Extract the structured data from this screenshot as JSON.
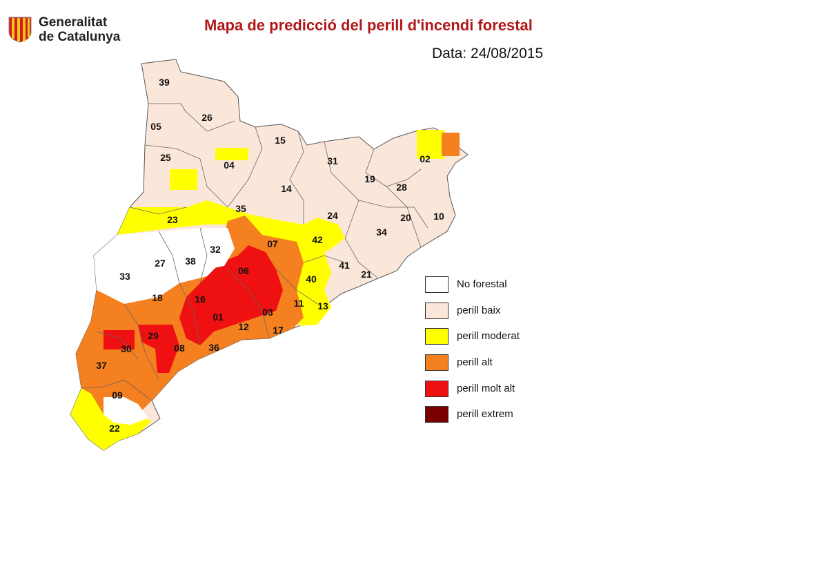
{
  "header": {
    "org_line1": "Generalitat",
    "org_line2": "de Catalunya",
    "title": "Mapa de predicció del perill d'incendi forestal",
    "date": "Data: 24/08/2015"
  },
  "colors": {
    "no_forestal": "#ffffff",
    "baix": "#fbe6da",
    "moderat": "#ffff00",
    "alt": "#f5801f",
    "molt_alt": "#ef1111",
    "extrem": "#7a0000",
    "title": "#b01818",
    "logo_red": "#d61a1a",
    "logo_yellow": "#f4c61a"
  },
  "legend": [
    {
      "label": "No forestal",
      "color": "#ffffff"
    },
    {
      "label": "perill baix",
      "color": "#fbe6da"
    },
    {
      "label": "perill moderat",
      "color": "#ffff00"
    },
    {
      "label": "perill alt",
      "color": "#f5801f"
    },
    {
      "label": "perill molt alt",
      "color": "#ef1111"
    },
    {
      "label": "perill extrem",
      "color": "#7a0000"
    }
  ],
  "zones": [
    {
      "id": "39",
      "level": "baix"
    },
    {
      "id": "26",
      "level": "baix"
    },
    {
      "id": "05",
      "level": "baix"
    },
    {
      "id": "15",
      "level": "baix"
    },
    {
      "id": "25",
      "level": "baix"
    },
    {
      "id": "04",
      "level": "baix"
    },
    {
      "id": "31",
      "level": "baix"
    },
    {
      "id": "02",
      "level": "baix"
    },
    {
      "id": "19",
      "level": "baix"
    },
    {
      "id": "28",
      "level": "baix"
    },
    {
      "id": "14",
      "level": "baix"
    },
    {
      "id": "35",
      "level": "moderat"
    },
    {
      "id": "24",
      "level": "baix"
    },
    {
      "id": "23",
      "level": "moderat"
    },
    {
      "id": "20",
      "level": "baix"
    },
    {
      "id": "10",
      "level": "baix"
    },
    {
      "id": "34",
      "level": "baix"
    },
    {
      "id": "07",
      "level": "alt"
    },
    {
      "id": "42",
      "level": "moderat"
    },
    {
      "id": "32",
      "level": "no_forestal"
    },
    {
      "id": "27",
      "level": "no_forestal"
    },
    {
      "id": "38",
      "level": "no_forestal"
    },
    {
      "id": "33",
      "level": "no_forestal"
    },
    {
      "id": "06",
      "level": "molt_alt"
    },
    {
      "id": "41",
      "level": "baix"
    },
    {
      "id": "21",
      "level": "baix"
    },
    {
      "id": "40",
      "level": "moderat"
    },
    {
      "id": "18",
      "level": "alt"
    },
    {
      "id": "16",
      "level": "molt_alt"
    },
    {
      "id": "11",
      "level": "alt"
    },
    {
      "id": "13",
      "level": "moderat"
    },
    {
      "id": "01",
      "level": "molt_alt"
    },
    {
      "id": "03",
      "level": "alt"
    },
    {
      "id": "12",
      "level": "alt"
    },
    {
      "id": "17",
      "level": "alt"
    },
    {
      "id": "29",
      "level": "alt"
    },
    {
      "id": "30",
      "level": "alt"
    },
    {
      "id": "08",
      "level": "molt_alt"
    },
    {
      "id": "36",
      "level": "alt"
    },
    {
      "id": "37",
      "level": "alt"
    },
    {
      "id": "09",
      "level": "alt"
    },
    {
      "id": "22",
      "level": "moderat"
    }
  ]
}
